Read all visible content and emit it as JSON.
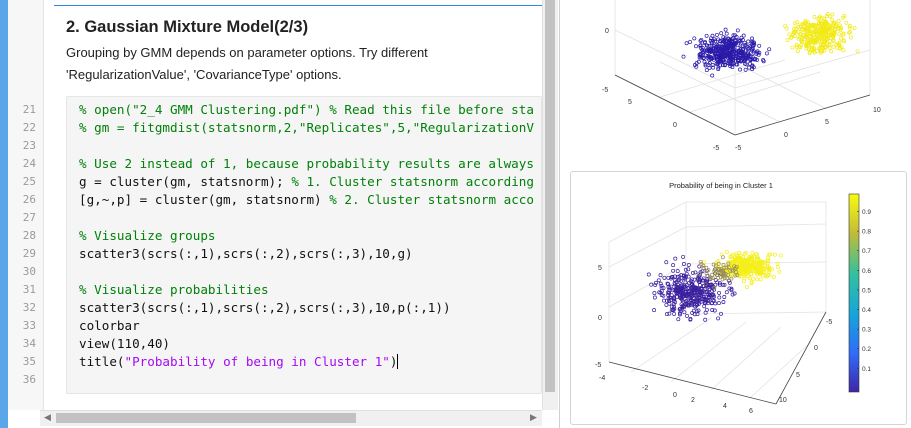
{
  "editor": {
    "section_title": "2. Gaussian Mixture Model(2/3)",
    "paragraph_line1": "Grouping by GMM depends on parameter options. Try different",
    "paragraph_line2": "'RegularizationValue', 'CovarianceType' options.",
    "line_numbers": [
      "21",
      "22",
      "23",
      "24",
      "25",
      "26",
      "27",
      "28",
      "29",
      "30",
      "31",
      "32",
      "33",
      "34",
      "35",
      "36"
    ],
    "code": {
      "l21": "% open(\"2_4 GMM Clustering.pdf\") % Read this file before sta",
      "l22": "% gm = fitgmdist(statsnorm,2,\"Replicates\",5,\"RegularizationV",
      "l24": "% Use 2 instead of 1, because probability results are always",
      "l25_code": "g = cluster(gm, statsnorm); ",
      "l25_comment": "% 1. Cluster statsnorm according",
      "l26_code": "[g,~,p] = cluster(gm, statsnorm) ",
      "l26_comment": "% 2. Cluster statsnorm acco",
      "l28": "% Visualize groups",
      "l29": "scatter3(scrs(:,1),scrs(:,2),scrs(:,3),10,g)",
      "l31": "% Visualize probabilities",
      "l32": "scatter3(scrs(:,1),scrs(:,2),scrs(:,3),10,p(:,1))",
      "l33": "colorbar",
      "l34": "view(110,40)",
      "l35_code": "title(",
      "l35_str": "\"Probability of being in Cluster 1\"",
      "l35_end": ")"
    }
  },
  "figure_top": {
    "ticks": {
      "z_top": "0",
      "z_bottom": "-5",
      "left_5": "5",
      "left_0": "0",
      "bottom_a": "-5",
      "bottom_b": "-5",
      "bottom_0": "0",
      "right_5": "5",
      "right_10": "10"
    }
  },
  "figure_bottom": {
    "title": "Probability of being in Cluster 1",
    "colorbar_ticks": [
      "0.9",
      "0.8",
      "0.7",
      "0.6",
      "0.5",
      "0.4",
      "0.3",
      "0.2",
      "0.1"
    ],
    "ticks": {
      "z_5": "5",
      "z_0": "0",
      "z_m5": "-5",
      "x_m4": "-4",
      "x_m2": "-2",
      "x_0": "0",
      "x_2": "2",
      "x_4": "4",
      "x_6": "6",
      "y_m5": "-5",
      "y_0": "0",
      "y_5": "5",
      "y_10": "10"
    },
    "colors": {
      "low": "#3a1f9e",
      "high": "#f5ef1a"
    }
  }
}
